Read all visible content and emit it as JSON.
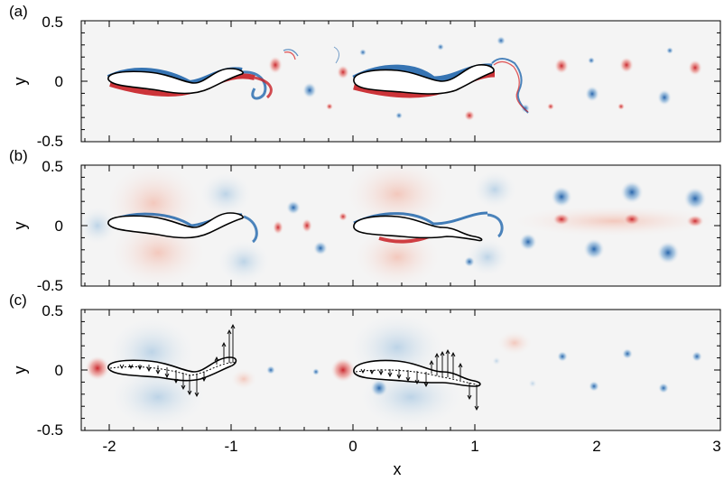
{
  "figure": {
    "xlabel": "x",
    "x_ticks": [
      "-2",
      "-1",
      "0",
      "1",
      "2",
      "3"
    ],
    "palette": {
      "positive": "#d7191c",
      "negative": "#2166ac",
      "background": "#f4f4f4"
    }
  },
  "panels": [
    {
      "label": "(a)",
      "ylabel": "y",
      "y_ticks": [
        "0.5",
        "0",
        "-0.5"
      ]
    },
    {
      "label": "(b)",
      "ylabel": "y",
      "y_ticks": [
        "0.5",
        "0",
        "-0.5"
      ]
    },
    {
      "label": "(c)",
      "ylabel": "y",
      "y_ticks": [
        "0.5",
        "0",
        "-0.5"
      ]
    }
  ]
}
